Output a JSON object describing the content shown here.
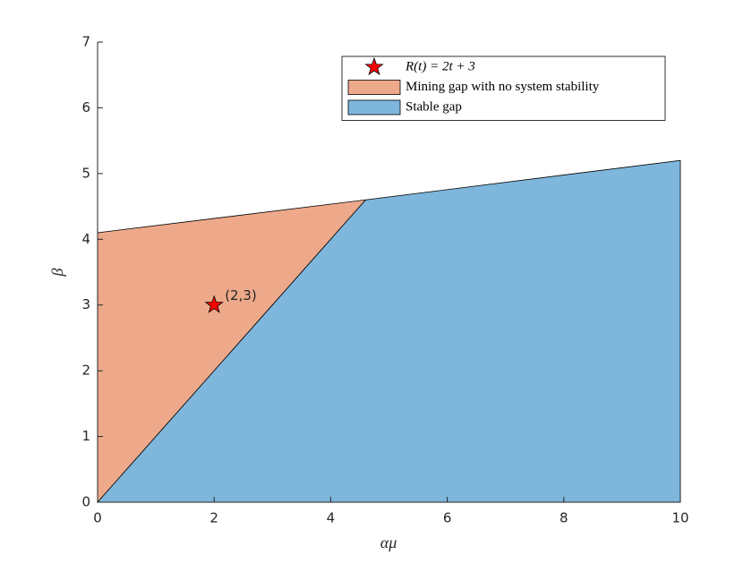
{
  "chart_data": {
    "type": "area",
    "xlabel": "αμ",
    "ylabel": "β",
    "xlim": [
      0,
      10
    ],
    "ylim": [
      0,
      7
    ],
    "xticks": [
      0,
      2,
      4,
      6,
      8,
      10
    ],
    "yticks": [
      0,
      1,
      2,
      3,
      4,
      5,
      6,
      7
    ],
    "grid": false,
    "legend": "northeast",
    "series": [
      {
        "name": "R(t) = 2t + 3",
        "type": "scatter",
        "marker": "star",
        "color": "#ff0000",
        "x": [
          2
        ],
        "values": [
          3
        ],
        "point_labels": [
          "(2,3)"
        ]
      },
      {
        "name": "Mining gap with no system stability",
        "type": "area",
        "color": "#eda98a",
        "x": [
          0,
          0,
          4.6
        ],
        "values": [
          0,
          4.1,
          4.6
        ]
      },
      {
        "name": "Stable gap",
        "type": "area",
        "color": "#7eb6dc",
        "x": [
          0,
          4.6,
          10,
          10
        ],
        "values": [
          0,
          4.6,
          5.2,
          0
        ]
      }
    ]
  }
}
